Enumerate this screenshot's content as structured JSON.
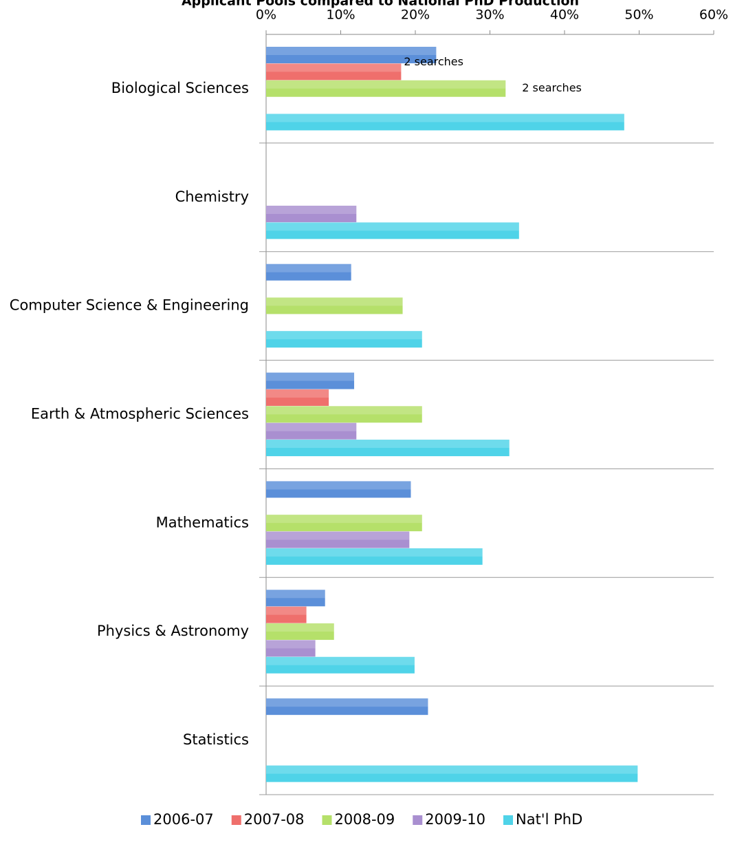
{
  "chart_data": {
    "type": "hbar",
    "title": "Applicant Pools compared to National PhD Production",
    "categories": [
      "Biological Sciences",
      "Chemistry",
      "Computer Science & Engineering",
      "Earth & Atmospheric Sciences",
      "Mathematics",
      "Physics & Astronomy",
      "Statistics"
    ],
    "series": [
      {
        "name": "2006-07",
        "color": "#5b8fd9",
        "values": [
          22.8,
          null,
          11.4,
          11.8,
          19.4,
          7.9,
          21.7
        ]
      },
      {
        "name": "2007-08",
        "color": "#ef6f6c",
        "values": [
          18.1,
          null,
          null,
          8.4,
          null,
          5.4,
          null
        ]
      },
      {
        "name": "2008-09",
        "color": "#b5e06a",
        "values": [
          32.1,
          null,
          18.3,
          20.9,
          20.9,
          9.1,
          null
        ]
      },
      {
        "name": "2009-10",
        "color": "#a98fd0",
        "values": [
          null,
          12.1,
          null,
          12.1,
          19.2,
          6.6,
          null
        ]
      },
      {
        "name": "Nat'l PhD",
        "color": "#4fd3e8",
        "values": [
          48.0,
          33.9,
          20.9,
          32.6,
          29.0,
          19.9,
          49.8
        ]
      }
    ],
    "annotations": [
      {
        "text": "2 searches",
        "series": "2007-08",
        "category": "Biological Sciences"
      },
      {
        "text": "2 searches",
        "series": "2008-09",
        "category": "Biological Sciences"
      }
    ],
    "xlim": [
      0,
      60
    ],
    "xticks": [
      {
        "value": 0,
        "label": "0%"
      },
      {
        "value": 10,
        "label": "10%"
      },
      {
        "value": 20,
        "label": "20%"
      },
      {
        "value": 30,
        "label": "30%"
      },
      {
        "value": 40,
        "label": "40%"
      },
      {
        "value": 50,
        "label": "50%"
      },
      {
        "value": 60,
        "label": "60%"
      }
    ],
    "legend": "bottom"
  }
}
